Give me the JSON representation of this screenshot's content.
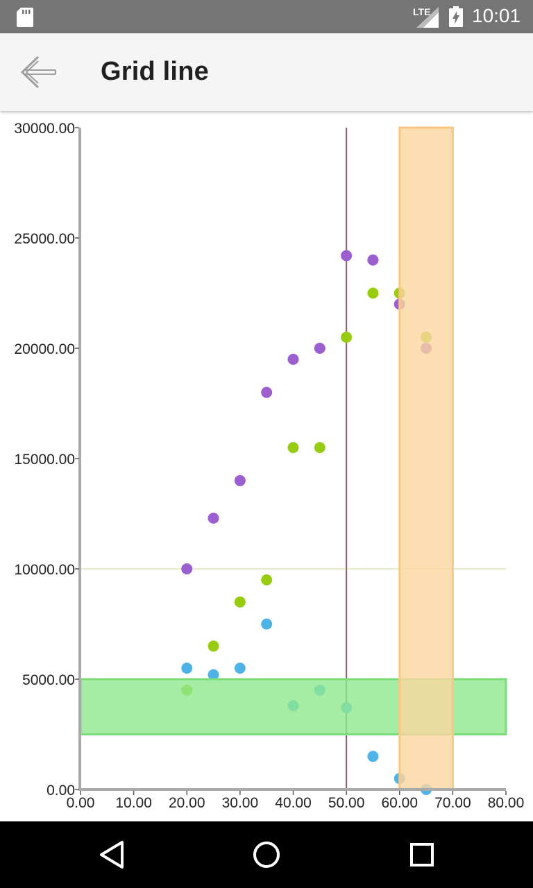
{
  "status_bar": {
    "network": "LTE",
    "time": "10:01",
    "icons": [
      "sd-card-icon",
      "signal-icon",
      "battery-charging-icon"
    ]
  },
  "app_bar": {
    "back_icon": "arrow-back-icon",
    "title": "Grid line"
  },
  "nav_bar": {
    "icons": [
      "back-triangle-icon",
      "home-circle-icon",
      "recents-square-icon"
    ]
  },
  "chart_data": {
    "type": "scatter",
    "title": "",
    "xlabel": "",
    "ylabel": "",
    "xlim": [
      0,
      80
    ],
    "ylim": [
      0,
      30000
    ],
    "x_ticks": [
      "0.00",
      "10.00",
      "20.00",
      "30.00",
      "40.00",
      "50.00",
      "60.00",
      "70.00",
      "80.00"
    ],
    "y_ticks": [
      "0.00",
      "5000.00",
      "10000.00",
      "15000.00",
      "20000.00",
      "25000.00",
      "30000.00"
    ],
    "x_tick_values": [
      0,
      10,
      20,
      30,
      40,
      50,
      60,
      70,
      80
    ],
    "y_tick_values": [
      0,
      5000,
      10000,
      15000,
      20000,
      25000,
      30000
    ],
    "grid": false,
    "legend": "none",
    "series": [
      {
        "color": "#9c5fd0",
        "points": [
          [
            20,
            10000
          ],
          [
            25,
            12300
          ],
          [
            30,
            14000
          ],
          [
            35,
            18000
          ],
          [
            40,
            19500
          ],
          [
            45,
            20000
          ],
          [
            50,
            24200
          ],
          [
            55,
            24000
          ],
          [
            60,
            22000
          ],
          [
            65,
            20000
          ]
        ]
      },
      {
        "color": "#98cc12",
        "points": [
          [
            20,
            4500
          ],
          [
            25,
            6500
          ],
          [
            30,
            8500
          ],
          [
            35,
            9500
          ],
          [
            40,
            15500
          ],
          [
            45,
            15500
          ],
          [
            50,
            20500
          ],
          [
            55,
            22500
          ],
          [
            60,
            22500
          ],
          [
            65,
            20500
          ]
        ]
      },
      {
        "color": "#4fb3e6",
        "points": [
          [
            20,
            5500
          ],
          [
            25,
            5200
          ],
          [
            30,
            5500
          ],
          [
            35,
            7500
          ],
          [
            40,
            3800
          ],
          [
            45,
            4500
          ],
          [
            50,
            3700
          ],
          [
            55,
            1500
          ],
          [
            60,
            500
          ],
          [
            65,
            0
          ]
        ]
      }
    ],
    "annotations": {
      "vertical_line": {
        "x": 50,
        "color": "#8a5a6e"
      },
      "horizontal_line": {
        "y": 10000,
        "color": "#e6efc8"
      },
      "horizontal_band": {
        "y_from": 2500,
        "y_to": 5000,
        "color": "#8ee88e"
      },
      "vertical_band": {
        "x_from": 60,
        "x_to": 70,
        "color": "#fbd6a0"
      }
    }
  }
}
